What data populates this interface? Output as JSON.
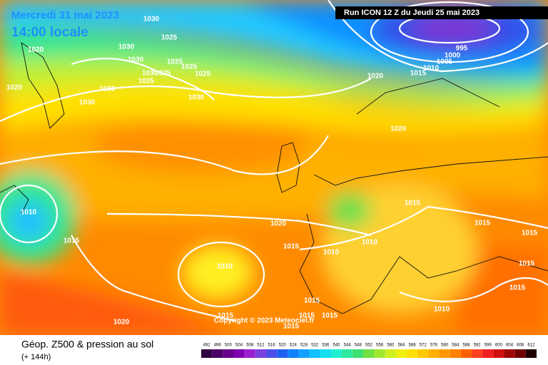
{
  "header": {
    "date": "Mercredi 31 mai 2023",
    "time": "14:00 locale",
    "run": "Run ICON 12 Z du Jeudi 25 mai 2023"
  },
  "copyright": "Copyright © 2023 Meteociel.fr",
  "legend": {
    "title": "Géop. Z500 & pression au sol",
    "lead": "(+ 144h)",
    "values": [
      492,
      496,
      500,
      504,
      508,
      512,
      516,
      520,
      524,
      528,
      532,
      536,
      540,
      544,
      548,
      552,
      556,
      560,
      564,
      568,
      572,
      576,
      580,
      584,
      588,
      592,
      596,
      600,
      604,
      608,
      612
    ],
    "colors": [
      "#300040",
      "#4a0066",
      "#66008c",
      "#8000b0",
      "#9a20d0",
      "#7a40e0",
      "#4a50e8",
      "#2060f0",
      "#1080f8",
      "#10a0ff",
      "#10c0ff",
      "#10e0f0",
      "#20f0d0",
      "#30e8a0",
      "#40e070",
      "#70e040",
      "#a0e830",
      "#d0f020",
      "#f0f010",
      "#ffe000",
      "#ffc800",
      "#ffb000",
      "#ff9800",
      "#ff8000",
      "#ff6000",
      "#ff4020",
      "#f02020",
      "#d01010",
      "#a00808",
      "#700000",
      "#200000"
    ]
  },
  "isobar_labels": [
    "1030",
    "1025",
    "1020",
    "1030",
    "1030",
    "1025",
    "1025",
    "1030",
    "1025",
    "1025",
    "1025",
    "1020",
    "1030",
    "1030",
    "1030",
    "995",
    "1000",
    "1005",
    "1010",
    "1015",
    "1020",
    "1020",
    "1010",
    "1015",
    "1020",
    "1015",
    "1010",
    "1010",
    "1015",
    "1015",
    "1015",
    "1015",
    "1015",
    "1010",
    "1015",
    "1015",
    "1015",
    "1015",
    "1015",
    "1010",
    "1020"
  ]
}
